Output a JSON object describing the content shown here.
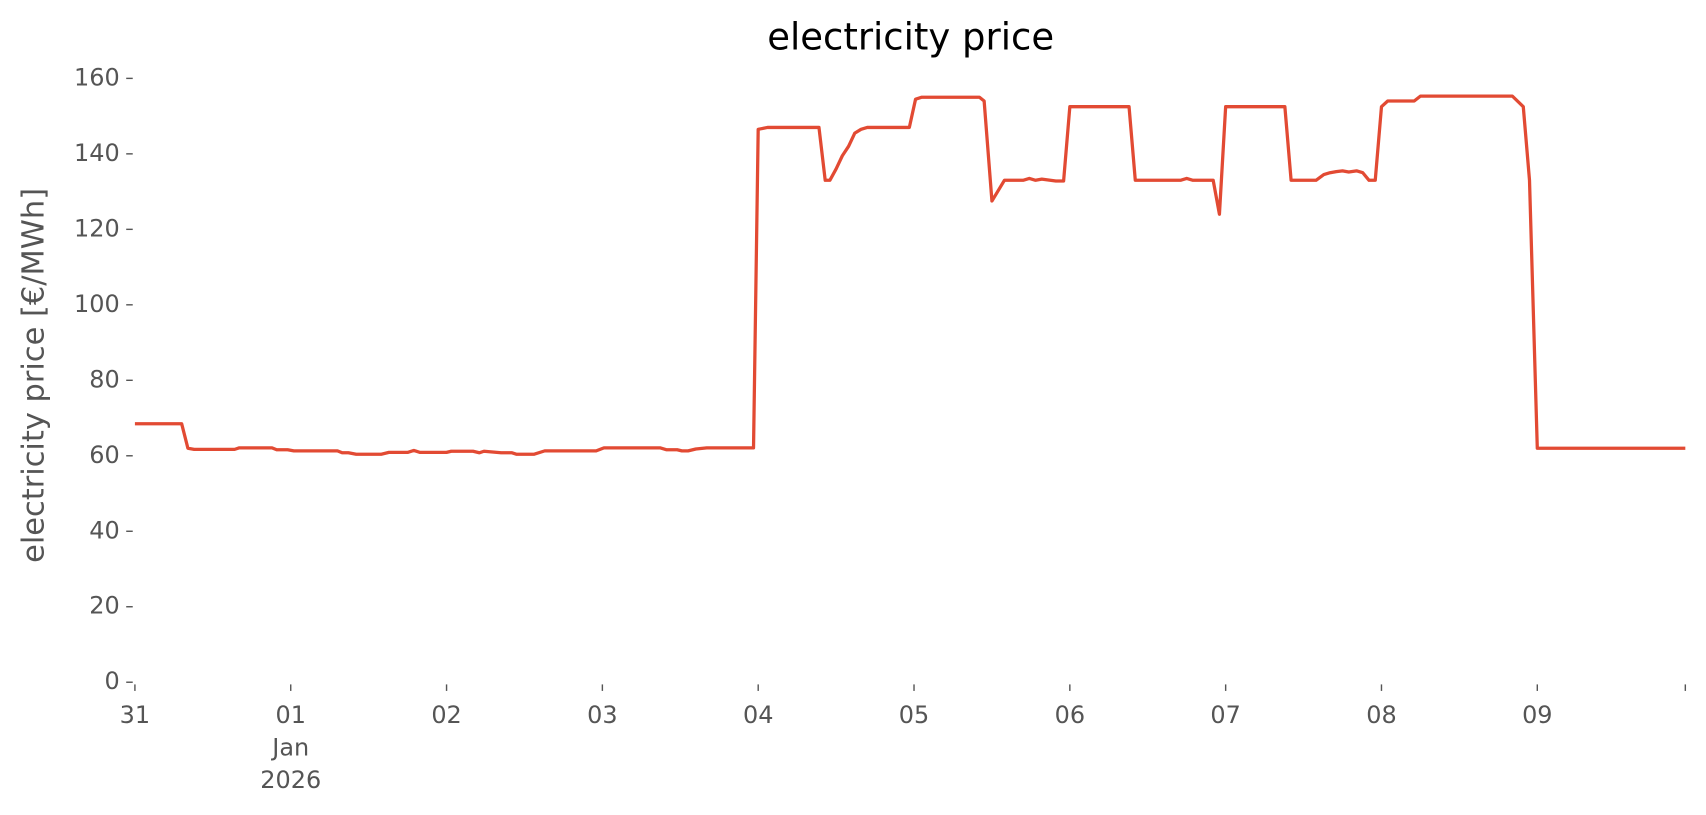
{
  "chart_data": {
    "type": "line",
    "title": "electricity price",
    "ylabel": "electricity price [€/MWh]",
    "color": "#e24a33",
    "grid": false,
    "xlim": [
      0,
      9.95
    ],
    "ylim": [
      0,
      160
    ],
    "yticks": [
      0,
      20,
      40,
      60,
      80,
      100,
      120,
      140,
      160
    ],
    "xticks": [
      {
        "value": 0,
        "label": [
          "31"
        ]
      },
      {
        "value": 1,
        "label": [
          "01",
          "Jan",
          "2026"
        ]
      },
      {
        "value": 2,
        "label": [
          "02"
        ]
      },
      {
        "value": 3,
        "label": [
          "03"
        ]
      },
      {
        "value": 4,
        "label": [
          "04"
        ]
      },
      {
        "value": 5,
        "label": [
          "05"
        ]
      },
      {
        "value": 6,
        "label": [
          "06"
        ]
      },
      {
        "value": 7,
        "label": [
          "07"
        ]
      },
      {
        "value": 8,
        "label": [
          "08"
        ]
      },
      {
        "value": 9,
        "label": [
          "09"
        ]
      }
    ],
    "x": [
      0,
      0.3,
      0.34,
      0.38,
      0.64,
      0.67,
      0.88,
      0.91,
      0.98,
      1.02,
      1.3,
      1.33,
      1.37,
      1.42,
      1.58,
      1.63,
      1.75,
      1.79,
      1.83,
      2.0,
      2.03,
      2.17,
      2.21,
      2.24,
      2.35,
      2.42,
      2.45,
      2.56,
      2.63,
      2.96,
      3.01,
      3.37,
      3.41,
      3.48,
      3.51,
      3.55,
      3.6,
      3.67,
      3.97,
      4.0,
      4.06,
      4.39,
      4.43,
      4.46,
      4.5,
      4.54,
      4.58,
      4.62,
      4.66,
      4.7,
      4.97,
      5.01,
      5.05,
      5.42,
      5.45,
      5.5,
      5.58,
      5.7,
      5.74,
      5.78,
      5.82,
      5.91,
      5.96,
      6.0,
      6.38,
      6.42,
      6.71,
      6.75,
      6.79,
      6.92,
      6.96,
      7.0,
      7.38,
      7.42,
      7.58,
      7.63,
      7.67,
      7.71,
      7.75,
      7.79,
      7.84,
      7.88,
      7.92,
      7.96,
      8.0,
      8.04,
      8.21,
      8.25,
      8.84,
      8.91,
      8.95,
      9.0,
      9.95
    ],
    "values": [
      68.5,
      68.5,
      62,
      61.7,
      61.7,
      62.1,
      62.1,
      61.6,
      61.6,
      61.3,
      61.3,
      60.8,
      60.8,
      60.4,
      60.4,
      60.9,
      60.9,
      61.4,
      60.9,
      60.9,
      61.2,
      61.2,
      60.8,
      61.2,
      60.8,
      60.8,
      60.4,
      60.4,
      61.3,
      61.3,
      62.1,
      62.1,
      61.6,
      61.6,
      61.3,
      61.3,
      61.8,
      62.1,
      62.1,
      146.5,
      147,
      147,
      133,
      133,
      136,
      139.5,
      142,
      145.5,
      146.5,
      147,
      147,
      154.5,
      155,
      155,
      154,
      127.5,
      133,
      133,
      133.5,
      133,
      133.3,
      132.8,
      132.8,
      152.5,
      152.5,
      133,
      133,
      133.5,
      133,
      133,
      124,
      152.5,
      152.5,
      133,
      133,
      134.5,
      135,
      135.3,
      135.5,
      135.2,
      135.5,
      135,
      133,
      133,
      152.5,
      154,
      154,
      155.3,
      155.3,
      152.5,
      133,
      62,
      62
    ]
  }
}
